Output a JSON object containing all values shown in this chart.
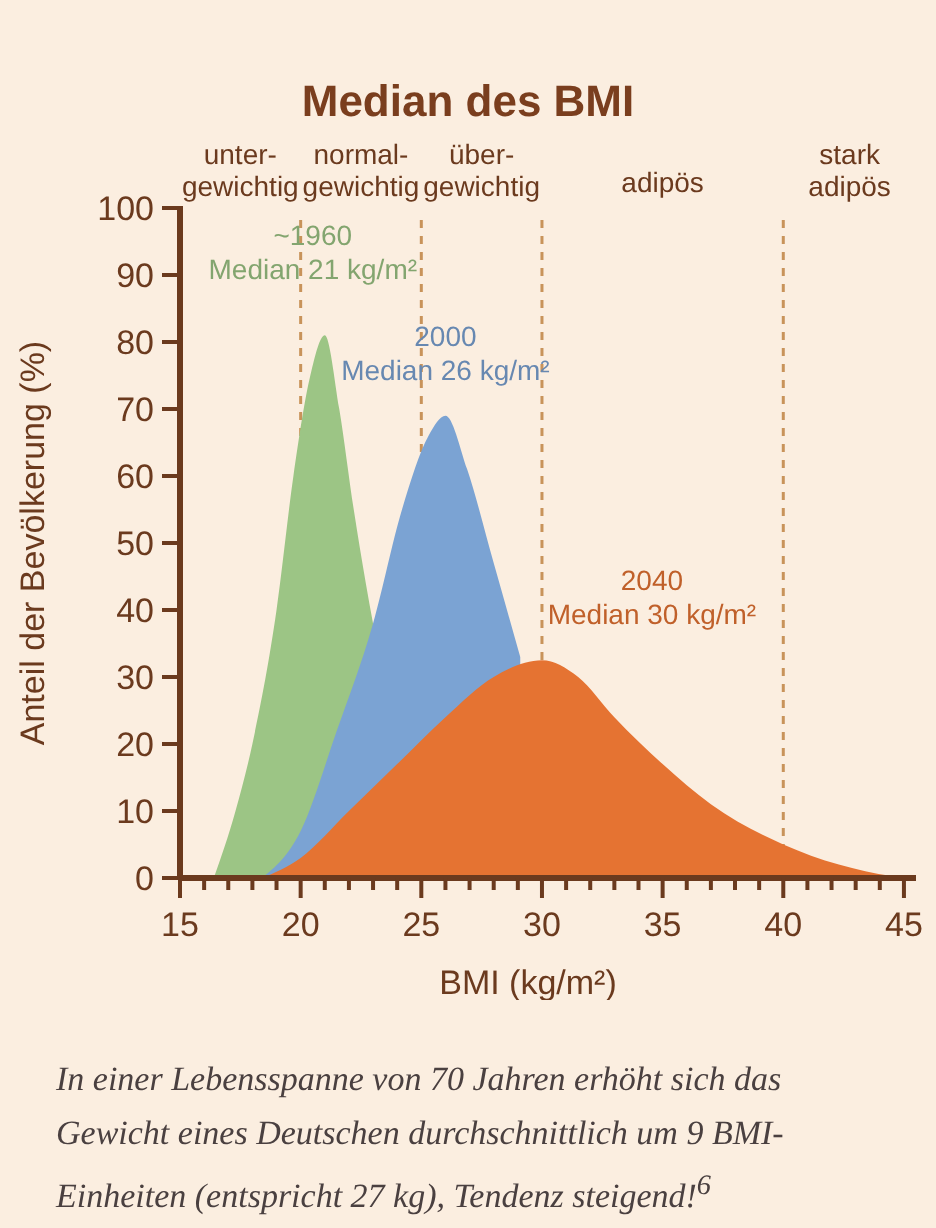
{
  "chart_data": {
    "type": "area",
    "title": "Median des BMI",
    "xlabel": "BMI (kg/m²)",
    "ylabel": "Anteil der Bevölkerung (%)",
    "xlim": [
      15,
      45.5
    ],
    "ylim": [
      0,
      100
    ],
    "xticks": [
      15,
      {
        "value": 16,
        "label": null
      },
      {
        "value": 17,
        "label": null
      },
      {
        "value": 18,
        "label": null
      },
      {
        "value": 19,
        "label": null
      },
      20,
      {
        "value": 21,
        "label": null
      },
      {
        "value": 22,
        "label": null
      },
      {
        "value": 23,
        "label": null
      },
      {
        "value": 24,
        "label": null
      },
      25,
      {
        "value": 26,
        "label": null
      },
      {
        "value": 27,
        "label": null
      },
      {
        "value": 28,
        "label": null
      },
      {
        "value": 29,
        "label": null
      },
      30,
      {
        "value": 31,
        "label": null
      },
      {
        "value": 32,
        "label": null
      },
      {
        "value": 33,
        "label": null
      },
      {
        "value": 34,
        "label": null
      },
      35,
      {
        "value": 36,
        "label": null
      },
      {
        "value": 37,
        "label": null
      },
      {
        "value": 38,
        "label": null
      },
      {
        "value": 39,
        "label": null
      },
      40,
      {
        "value": 41,
        "label": null
      },
      {
        "value": 42,
        "label": null
      },
      {
        "value": 43,
        "label": null
      },
      {
        "value": 44,
        "label": null
      },
      45
    ],
    "yticks": [
      0,
      10,
      20,
      30,
      40,
      50,
      60,
      70,
      80,
      90,
      100
    ],
    "grid": false,
    "series": [
      {
        "name": "~1960 Median 21 kg/m²",
        "color": "#9cc585",
        "x": [
          16.4,
          17.3,
          18,
          19,
          19.7,
          20.4,
          21,
          21.6,
          22.2,
          22.7,
          23
        ],
        "values": [
          0,
          10,
          20,
          40,
          60,
          75,
          81,
          70,
          55,
          44,
          38
        ]
      },
      {
        "name": "2000 Median 26 kg/m²",
        "color": "#7ba3d3",
        "x": [
          18.4,
          20,
          21.5,
          23,
          24.2,
          25.3,
          26,
          26.9,
          28,
          29.1
        ],
        "values": [
          0,
          7,
          22,
          38,
          55,
          66,
          69,
          61,
          47,
          33
        ]
      },
      {
        "name": "2040 Median 30 kg/m²",
        "color": "#e57332",
        "x": [
          18.4,
          20,
          22,
          24,
          26,
          28,
          30,
          31.5,
          33,
          35,
          37,
          40,
          42.3,
          44.5,
          45.5
        ],
        "values": [
          0,
          3,
          10,
          17,
          24,
          30,
          32.5,
          30,
          24,
          17,
          11,
          5,
          2,
          0.3,
          0
        ]
      }
    ],
    "ref_lines": [
      {
        "axis": "x",
        "value": 20,
        "color": "#c8935a",
        "line_style": "dashed"
      },
      {
        "axis": "x",
        "value": 25,
        "color": "#c8935a",
        "line_style": "dashed"
      },
      {
        "axis": "x",
        "value": 30,
        "color": "#c8935a",
        "line_style": "dashed"
      },
      {
        "axis": "x",
        "value": 40,
        "color": "#c8935a",
        "line_style": "dashed"
      }
    ],
    "annotations": [
      "unter- gewichtig",
      "normal- gewichtig",
      "über- gewichtig",
      "adipös",
      "stark adipös",
      "In einer Lebensspanne von 70 Jahren erhöht sich das Gewicht eines Deutschen durchschnittlich um 9 BMI-Einheiten (entspricht 27 kg), Tendenz steigend!$^{6}$"
    ]
  }
}
